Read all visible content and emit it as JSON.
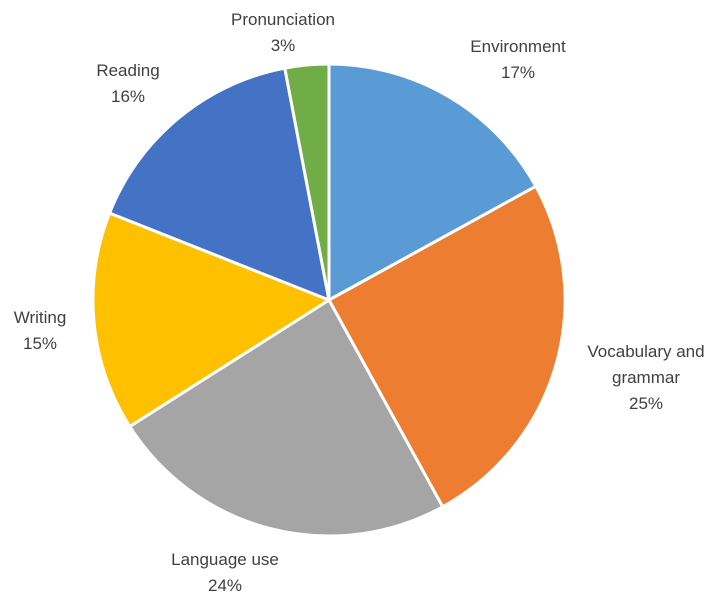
{
  "chart_data": {
    "type": "pie",
    "title": "",
    "slices": [
      {
        "name": "Environment",
        "value": 17,
        "value_label": "17%",
        "color": "#5B9BD5",
        "label_lines": [
          "Environment",
          "17%"
        ]
      },
      {
        "name": "Vocabulary and grammar",
        "value": 25,
        "value_label": "25%",
        "color": "#ED7D31",
        "label_lines": [
          "Vocabulary and",
          "grammar",
          "25%"
        ]
      },
      {
        "name": "Language use",
        "value": 24,
        "value_label": "24%",
        "color": "#A5A5A5",
        "label_lines": [
          "Language use",
          "24%"
        ]
      },
      {
        "name": "Writing",
        "value": 15,
        "value_label": "15%",
        "color": "#FFC000",
        "label_lines": [
          "Writing",
          "15%"
        ]
      },
      {
        "name": "Reading",
        "value": 16,
        "value_label": "16%",
        "color": "#4472C4",
        "label_lines": [
          "Reading",
          "16%"
        ]
      },
      {
        "name": "Pronunciation",
        "value": 3,
        "value_label": "3%",
        "color": "#70AD47",
        "label_lines": [
          "Pronunciation",
          "3%"
        ]
      }
    ],
    "start_angle_deg": 0,
    "direction": "clockwise",
    "legend": "none",
    "label_position": "outside"
  }
}
